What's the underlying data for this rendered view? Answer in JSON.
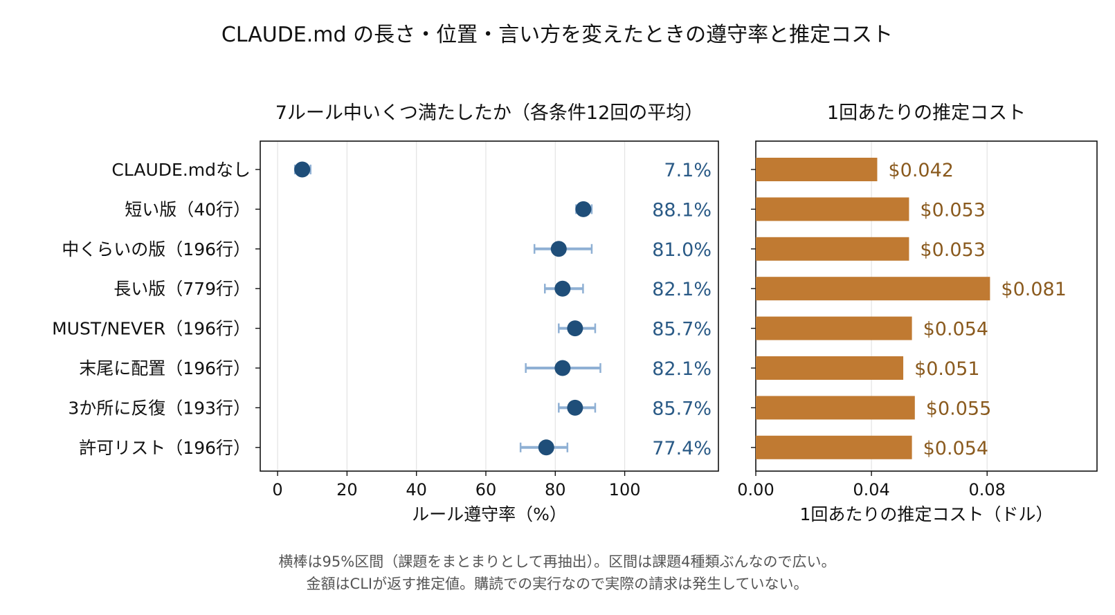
{
  "figure": {
    "title": "CLAUDE.md の長さ・位置・言い方を変えたときの遵守率と推定コスト",
    "notes": [
      "横棒は95%区間（課題をまとまりとして再抽出）。区間は課題4種類ぶんなので広い。",
      "金額はCLIが返す推定値。購読での実行なので実際の請求は発生していない。"
    ]
  },
  "colors": {
    "point": "#1f4e79",
    "errorbar": "#8fb0d4",
    "pct_label": "#2a5a86",
    "bar": "#c07a32",
    "cost_label": "#8a5a1e",
    "grid": "#e3e3e3"
  },
  "chart_data": [
    {
      "type": "scatter",
      "title": "7ルール中いくつ満たしたか（各条件12回の平均）",
      "xlabel": "ルール遵守率（%）",
      "ylabel": "",
      "xlim": [
        -5,
        127
      ],
      "xticks": [
        0,
        20,
        40,
        60,
        80,
        100
      ],
      "grid": "vertical",
      "categories": [
        "CLAUDE.mdなし",
        "短い版（40行）",
        "中くらいの版（196行）",
        "長い版（779行）",
        "MUST/NEVER（196行）",
        "末尾に配置（196行）",
        "3か所に反復（193行）",
        "許可リスト（196行）"
      ],
      "values": [
        7.1,
        88.1,
        81.0,
        82.1,
        85.7,
        82.1,
        85.7,
        77.4
      ],
      "ci_low": [
        5.0,
        86.0,
        74.0,
        77.0,
        81.0,
        71.5,
        81.0,
        70.0
      ],
      "ci_high": [
        9.5,
        90.5,
        90.5,
        88.0,
        91.5,
        93.0,
        91.5,
        83.5
      ],
      "value_labels": [
        "7.1%",
        "88.1%",
        "81.0%",
        "82.1%",
        "85.7%",
        "82.1%",
        "85.7%",
        "77.4%"
      ]
    },
    {
      "type": "bar",
      "orientation": "horizontal",
      "title": "1回あたりの推定コスト",
      "xlabel": "1回あたりの推定コスト（ドル）",
      "ylabel": "",
      "xlim": [
        0,
        0.118
      ],
      "xticks": [
        "0.00",
        "0.04",
        "0.08"
      ],
      "grid": "vertical",
      "categories": [
        "CLAUDE.mdなし",
        "短い版（40行）",
        "中くらいの版（196行）",
        "長い版（779行）",
        "MUST/NEVER（196行）",
        "末尾に配置（196行）",
        "3か所に反復（193行）",
        "許可リスト（196行）"
      ],
      "values": [
        0.042,
        0.053,
        0.053,
        0.081,
        0.054,
        0.051,
        0.055,
        0.054
      ],
      "value_labels": [
        "$0.042",
        "$0.053",
        "$0.053",
        "$0.081",
        "$0.054",
        "$0.051",
        "$0.055",
        "$0.054"
      ]
    }
  ]
}
